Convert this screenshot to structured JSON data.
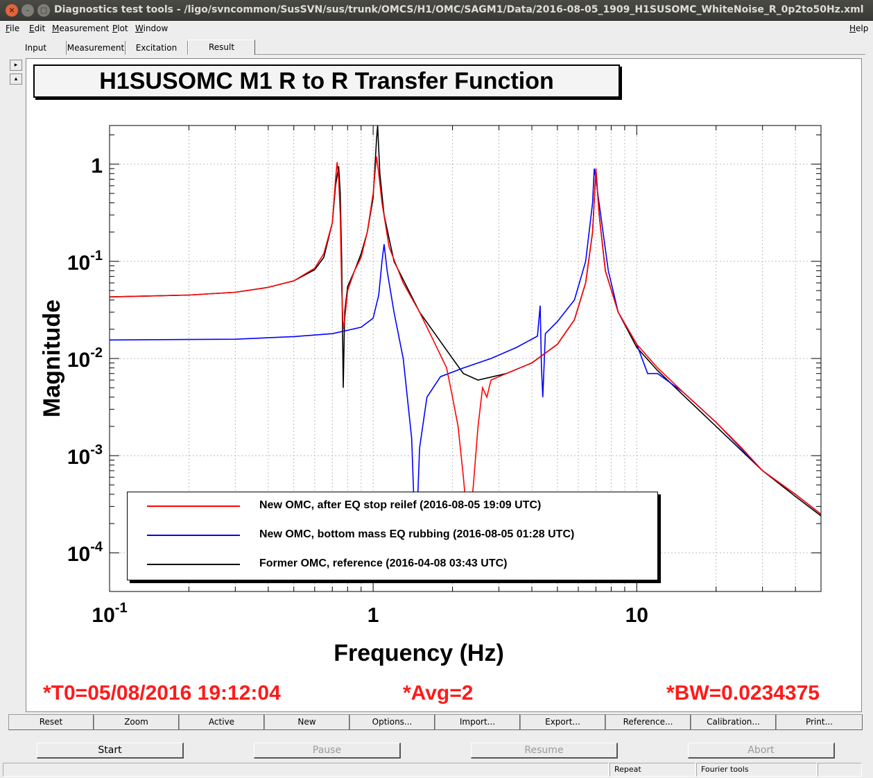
{
  "window": {
    "title": "Diagnostics test tools - /ligo/svncommon/SusSVN/sus/trunk/OMCS/H1/OMC/SAGM1/Data/2016-08-05_1909_H1SUSOMC_WhiteNoise_R_0p2to50Hz.xml"
  },
  "menu": {
    "file": "File",
    "edit": "Edit",
    "measurement": "Measurement",
    "plot": "Plot",
    "window": "Window",
    "help": "Help"
  },
  "tabs": {
    "input": "Input",
    "measurement": "Measurement",
    "excitation": "Excitation",
    "result": "Result"
  },
  "side_buttons": {
    "expand": "▸",
    "collapse": "▴"
  },
  "plot": {
    "title": "H1SUSOMC M1 R to R Transfer Function",
    "t0": "*T0=05/08/2016 19:12:04",
    "avg": "*Avg=2",
    "bw": "*BW=0.0234375"
  },
  "chart_data": {
    "type": "line",
    "title": "H1SUSOMC M1 R to R Transfer Function",
    "xlabel": "Frequency (Hz)",
    "ylabel": "Magnitude",
    "xscale": "log",
    "yscale": "log",
    "xlim": [
      0.1,
      50
    ],
    "ylim": [
      4e-05,
      2.5
    ],
    "x_ticks": [
      "10-1",
      "1",
      "10"
    ],
    "y_ticks": [
      "1",
      "10-1",
      "10-2",
      "10-3",
      "10-4"
    ],
    "grid": true,
    "legend_position": "bottom-left",
    "series": [
      {
        "name": "New OMC, after EQ stop reilef (2016-08-05 19:09 UTC)",
        "color": "#ff0000",
        "points": [
          [
            0.1,
            0.043
          ],
          [
            0.2,
            0.045
          ],
          [
            0.3,
            0.048
          ],
          [
            0.4,
            0.054
          ],
          [
            0.5,
            0.063
          ],
          [
            0.6,
            0.085
          ],
          [
            0.65,
            0.12
          ],
          [
            0.7,
            0.25
          ],
          [
            0.72,
            0.7
          ],
          [
            0.73,
            1.05
          ],
          [
            0.74,
            0.7
          ],
          [
            0.75,
            0.3
          ],
          [
            0.76,
            0.05
          ],
          [
            0.77,
            0.02
          ],
          [
            0.78,
            0.025
          ],
          [
            0.8,
            0.05
          ],
          [
            0.85,
            0.08
          ],
          [
            0.9,
            0.11
          ],
          [
            0.95,
            0.2
          ],
          [
            1.0,
            0.5
          ],
          [
            1.03,
            1.2
          ],
          [
            1.05,
            0.8
          ],
          [
            1.08,
            0.4
          ],
          [
            1.15,
            0.14
          ],
          [
            1.3,
            0.06
          ],
          [
            1.5,
            0.03
          ],
          [
            1.7,
            0.015
          ],
          [
            1.9,
            0.008
          ],
          [
            2.0,
            0.004
          ],
          [
            2.1,
            0.002
          ],
          [
            2.2,
            0.0006
          ],
          [
            2.3,
            0.00015
          ],
          [
            2.4,
            0.0005
          ],
          [
            2.5,
            0.002
          ],
          [
            2.6,
            0.005
          ],
          [
            2.7,
            0.004
          ],
          [
            2.8,
            0.006
          ],
          [
            3.2,
            0.007
          ],
          [
            4.0,
            0.009
          ],
          [
            5.0,
            0.014
          ],
          [
            5.8,
            0.025
          ],
          [
            6.4,
            0.06
          ],
          [
            6.8,
            0.2
          ],
          [
            7.0,
            0.9
          ],
          [
            7.2,
            0.3
          ],
          [
            7.6,
            0.08
          ],
          [
            8.5,
            0.03
          ],
          [
            10,
            0.014
          ],
          [
            12,
            0.008
          ],
          [
            15,
            0.0045
          ],
          [
            20,
            0.0022
          ],
          [
            25,
            0.0012
          ],
          [
            30,
            0.0007
          ],
          [
            40,
            0.0004
          ],
          [
            50,
            0.00025
          ]
        ]
      },
      {
        "name": "New OMC, bottom mass EQ rubbing  (2016-08-05 01:28 UTC)",
        "color": "#0000ff",
        "points": [
          [
            0.1,
            0.0155
          ],
          [
            0.3,
            0.0158
          ],
          [
            0.5,
            0.0168
          ],
          [
            0.7,
            0.018
          ],
          [
            0.9,
            0.021
          ],
          [
            1.0,
            0.026
          ],
          [
            1.05,
            0.045
          ],
          [
            1.08,
            0.1
          ],
          [
            1.1,
            0.15
          ],
          [
            1.13,
            0.08
          ],
          [
            1.2,
            0.03
          ],
          [
            1.3,
            0.01
          ],
          [
            1.4,
            0.0015
          ],
          [
            1.45,
            0.0001
          ],
          [
            1.5,
            0.0012
          ],
          [
            1.6,
            0.004
          ],
          [
            1.8,
            0.0065
          ],
          [
            2.2,
            0.008
          ],
          [
            2.8,
            0.01
          ],
          [
            3.5,
            0.013
          ],
          [
            4.2,
            0.017
          ],
          [
            4.3,
            0.035
          ],
          [
            4.35,
            0.008
          ],
          [
            4.4,
            0.004
          ],
          [
            4.5,
            0.018
          ],
          [
            5.0,
            0.024
          ],
          [
            5.8,
            0.04
          ],
          [
            6.4,
            0.1
          ],
          [
            6.8,
            0.4
          ],
          [
            6.9,
            0.9
          ],
          [
            7.0,
            0.7
          ],
          [
            7.3,
            0.3
          ],
          [
            7.8,
            0.08
          ],
          [
            8.5,
            0.03
          ],
          [
            10,
            0.014
          ],
          [
            11,
            0.007
          ],
          [
            12,
            0.007
          ],
          [
            15,
            0.0045
          ],
          [
            20,
            0.0022
          ],
          [
            30,
            0.0007
          ],
          [
            40,
            0.0004
          ],
          [
            50,
            0.00025
          ]
        ]
      },
      {
        "name": "Former OMC, reference (2016-04-08 03:43 UTC)",
        "color": "#000000",
        "points": [
          [
            0.1,
            0.043
          ],
          [
            0.2,
            0.045
          ],
          [
            0.3,
            0.048
          ],
          [
            0.4,
            0.054
          ],
          [
            0.5,
            0.063
          ],
          [
            0.6,
            0.082
          ],
          [
            0.65,
            0.11
          ],
          [
            0.7,
            0.25
          ],
          [
            0.72,
            0.6
          ],
          [
            0.74,
            0.95
          ],
          [
            0.75,
            0.5
          ],
          [
            0.76,
            0.1
          ],
          [
            0.77,
            0.005
          ],
          [
            0.78,
            0.03
          ],
          [
            0.8,
            0.055
          ],
          [
            0.85,
            0.08
          ],
          [
            0.9,
            0.12
          ],
          [
            0.95,
            0.2
          ],
          [
            1.0,
            0.45
          ],
          [
            1.03,
            1.8
          ],
          [
            1.04,
            2.5
          ],
          [
            1.06,
            0.8
          ],
          [
            1.1,
            0.3
          ],
          [
            1.2,
            0.1
          ],
          [
            1.5,
            0.03
          ],
          [
            2.0,
            0.01
          ],
          [
            2.2,
            0.007
          ],
          [
            2.5,
            0.006
          ],
          [
            3.2,
            0.007
          ],
          [
            4.0,
            0.009
          ],
          [
            5.0,
            0.014
          ],
          [
            5.8,
            0.025
          ],
          [
            6.4,
            0.06
          ],
          [
            6.8,
            0.2
          ],
          [
            7.0,
            0.9
          ],
          [
            7.2,
            0.3
          ],
          [
            7.6,
            0.08
          ],
          [
            8.5,
            0.03
          ],
          [
            10,
            0.013
          ],
          [
            12,
            0.0075
          ],
          [
            15,
            0.0042
          ],
          [
            20,
            0.002
          ],
          [
            30,
            0.0007
          ],
          [
            40,
            0.00038
          ],
          [
            50,
            0.00024
          ]
        ]
      }
    ]
  },
  "toolbar": {
    "reset": "Reset",
    "zoom": "Zoom",
    "active": "Active",
    "new": "New",
    "options": "Options...",
    "import": "Import...",
    "export": "Export...",
    "reference": "Reference...",
    "calibration": "Calibration...",
    "print": "Print..."
  },
  "run": {
    "start": "Start",
    "pause": "Pause",
    "resume": "Resume",
    "abort": "Abort"
  },
  "status": {
    "repeat": "Repeat",
    "fourier": "Fourier tools"
  }
}
